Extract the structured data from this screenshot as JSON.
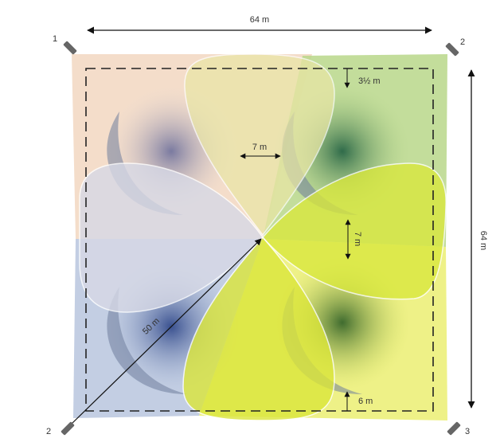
{
  "dimensions": {
    "width_label": "64 m",
    "height_label": "64 m",
    "top_margin_label": "3½ m",
    "center_gap_horizontal_label": "7 m",
    "center_gap_vertical_label": "7 m",
    "bottom_margin_label": "6 m",
    "diagonal_label": "50 m"
  },
  "cameras": [
    {
      "id": "top-left",
      "label": "1"
    },
    {
      "id": "top-right",
      "label": "2"
    },
    {
      "id": "bottom-left",
      "label": "2"
    },
    {
      "id": "bottom-right",
      "label": "3"
    }
  ],
  "zone_colors": {
    "top_left": "#f3d9c4",
    "top_right": "#b9d78a",
    "bottom_left": "#b8c6de",
    "bottom_right": "#ecef7a",
    "lobe_top": "#e9e6a6",
    "lobe_left": "#d7d9e6",
    "lobe_right": "#d9e83c",
    "lobe_bottom": "#dbe63a",
    "shadow": "#7f8ba3"
  }
}
